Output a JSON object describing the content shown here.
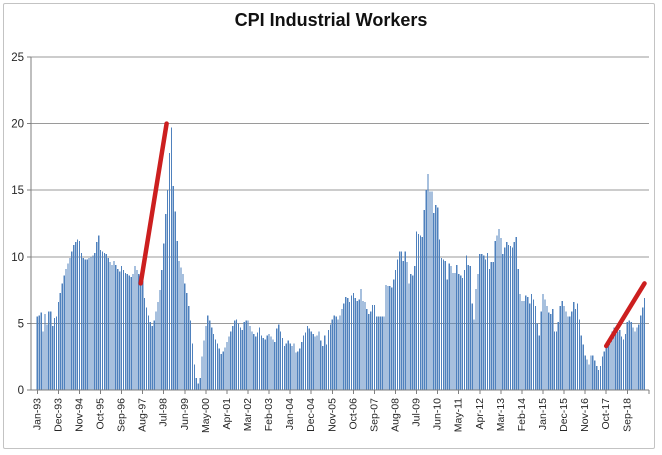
{
  "chart_data": {
    "type": "bar",
    "title": "CPI Industrial Workers",
    "xlabel": "",
    "ylabel": "",
    "ylim": [
      0,
      25
    ],
    "y_ticks": [
      0,
      5,
      10,
      15,
      20,
      25
    ],
    "grid": "horizontal-major",
    "legend": "none",
    "start_month": "Jan-93",
    "end_month": "Jun-19",
    "x_tick_interval_months": 11,
    "x_tick_labels": [
      "Jan-93",
      "Dec-93",
      "Nov-94",
      "Oct-95",
      "Sep-96",
      "Aug-97",
      "Jul-98",
      "Jun-99",
      "May-00",
      "Apr-01",
      "Mar-02",
      "Feb-03",
      "Jan-04",
      "Dec-04",
      "Nov-05",
      "Oct-06",
      "Sep-07",
      "Aug-08",
      "Jul-09",
      "Jun-10",
      "May-11",
      "Apr-12",
      "Mar-13",
      "Feb-14",
      "Jan-15",
      "Dec-15",
      "Nov-16",
      "Oct-17",
      "Sep-18"
    ],
    "bar_color": "#4f81bd",
    "gridline_color": "#9a9a9a",
    "axis_color": "#7f7f7f",
    "annotation_color": "#cc1f1f",
    "annotations": [
      {
        "type": "trend-line",
        "from_month_index": 54,
        "from_value": 8.0,
        "to_month_index": 67.5,
        "to_value": 20.0
      },
      {
        "type": "trend-line",
        "from_month_index": 297,
        "from_value": 3.3,
        "to_month_index": 317,
        "to_value": 8.0
      }
    ],
    "values": [
      5.5,
      5.6,
      5.8,
      4.4,
      5.7,
      4.9,
      5.9,
      5.9,
      4.8,
      5.4,
      5.5,
      6.6,
      7.3,
      8.0,
      8.6,
      9.1,
      9.5,
      9.9,
      10.4,
      10.9,
      11.1,
      11.3,
      11.2,
      10.3,
      9.9,
      9.8,
      9.8,
      9.9,
      10.0,
      10.1,
      10.3,
      11.1,
      11.6,
      10.5,
      10.4,
      10.3,
      10.2,
      9.9,
      9.6,
      9.4,
      9.7,
      9.4,
      9.1,
      8.9,
      9.3,
      9.0,
      8.8,
      8.7,
      8.6,
      8.5,
      8.7,
      9.3,
      9.0,
      8.7,
      8.4,
      8.2,
      6.9,
      6.2,
      5.6,
      5.1,
      4.8,
      5.2,
      5.9,
      6.6,
      7.5,
      9.0,
      11.0,
      13.2,
      15.0,
      17.8,
      19.7,
      15.3,
      13.4,
      11.2,
      9.7,
      9.2,
      8.7,
      8.0,
      7.3,
      6.3,
      5.2,
      3.5,
      1.9,
      0.9,
      0.5,
      0.9,
      2.5,
      3.7,
      4.8,
      5.6,
      5.2,
      4.7,
      4.2,
      3.8,
      3.5,
      3.1,
      2.7,
      2.9,
      3.2,
      3.6,
      4.0,
      4.4,
      4.8,
      5.2,
      5.3,
      5.0,
      4.7,
      4.5,
      5.1,
      5.2,
      5.2,
      4.8,
      4.4,
      4.2,
      4.0,
      4.3,
      4.7,
      4.1,
      3.9,
      3.8,
      4.1,
      4.2,
      4.0,
      3.8,
      3.6,
      4.6,
      4.9,
      4.4,
      3.9,
      3.3,
      3.5,
      3.7,
      3.5,
      3.3,
      3.5,
      2.8,
      2.9,
      3.1,
      3.6,
      4.1,
      4.3,
      4.8,
      4.6,
      4.4,
      4.2,
      4.0,
      4.1,
      4.4,
      3.7,
      3.3,
      4.1,
      3.4,
      4.5,
      4.9,
      5.3,
      5.6,
      5.5,
      5.3,
      5.6,
      6.1,
      6.5,
      7.0,
      6.9,
      6.6,
      7.1,
      7.3,
      6.9,
      6.7,
      6.8,
      7.6,
      6.7,
      6.6,
      6.1,
      5.7,
      5.9,
      6.4,
      6.4,
      5.5,
      5.5,
      5.5,
      5.5,
      5.5,
      7.9,
      7.8,
      7.8,
      7.7,
      8.3,
      9.0,
      9.8,
      10.4,
      10.4,
      9.7,
      10.4,
      9.6,
      8.0,
      8.7,
      8.6,
      9.3,
      11.9,
      11.7,
      11.6,
      11.5,
      13.5,
      15.0,
      16.2,
      14.9,
      14.9,
      13.3,
      13.9,
      13.7,
      11.3,
      9.9,
      9.8,
      9.7,
      8.3,
      9.5,
      9.3,
      8.8,
      8.8,
      9.4,
      8.7,
      8.6,
      8.4,
      9.0,
      10.1,
      9.4,
      9.3,
      6.5,
      5.3,
      7.6,
      8.7,
      10.2,
      10.2,
      10.1,
      9.8,
      10.3,
      9.1,
      9.6,
      9.6,
      11.2,
      11.6,
      12.1,
      11.4,
      10.2,
      10.7,
      11.1,
      10.9,
      10.8,
      10.7,
      11.1,
      11.5,
      9.1,
      7.2,
      6.7,
      6.7,
      7.1,
      7.0,
      6.5,
      7.2,
      6.8,
      6.3,
      5.0,
      4.1,
      5.9,
      7.2,
      6.8,
      6.3,
      5.8,
      5.7,
      6.1,
      4.4,
      4.4,
      5.1,
      6.3,
      6.7,
      6.3,
      5.9,
      5.5,
      5.5,
      5.9,
      6.6,
      6.1,
      6.5,
      5.3,
      4.1,
      3.4,
      2.6,
      2.3,
      1.9,
      2.6,
      2.6,
      2.2,
      1.8,
      1.5,
      1.8,
      2.5,
      2.9,
      3.2,
      3.6,
      4.0,
      4.4,
      4.7,
      4.2,
      4.4,
      4.5,
      4.0,
      3.8,
      4.2,
      5.1,
      5.2,
      5.1,
      4.7,
      4.4,
      4.7,
      4.9,
      5.6,
      6.2,
      6.9
    ]
  }
}
